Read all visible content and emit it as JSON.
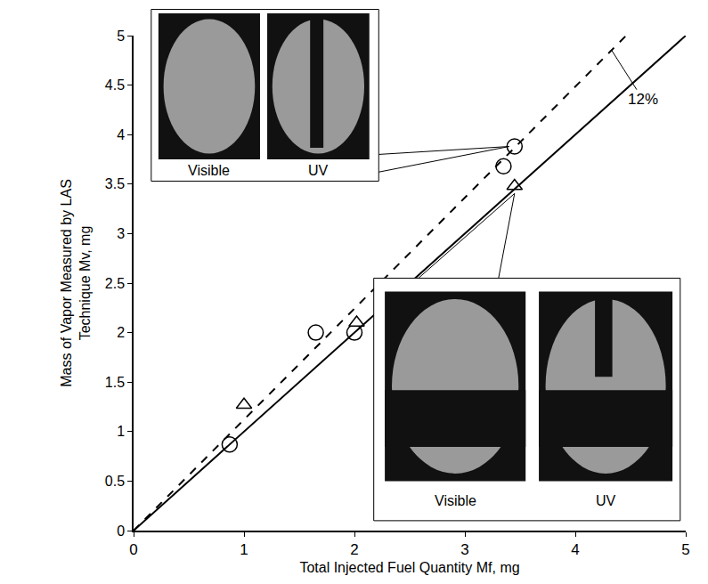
{
  "chart_data": {
    "type": "scatter",
    "xlabel": "Total Injected Fuel Quantity Mf, mg",
    "ylabel": [
      "Mass of Vapor Measured by LAS",
      "Technique Mv, mg"
    ],
    "xlim": [
      0,
      5
    ],
    "ylim": [
      0,
      5
    ],
    "xticks": [
      0,
      1,
      2,
      3,
      4,
      5
    ],
    "yticks": [
      0,
      0.5,
      1,
      1.5,
      2,
      2.5,
      3,
      3.5,
      4,
      4.5,
      5
    ],
    "grid": false,
    "series": [
      {
        "type": "scatter",
        "marker": "circle",
        "color": "#000000",
        "x": [
          0.87,
          1.65,
          2.0,
          3.35,
          3.45
        ],
        "values": [
          0.87,
          2.0,
          2.0,
          3.68,
          3.88
        ]
      },
      {
        "type": "scatter",
        "marker": "triangle",
        "color": "#000000",
        "x": [
          1.0,
          2.02,
          3.45
        ],
        "values": [
          1.27,
          2.1,
          3.48
        ]
      },
      {
        "type": "line",
        "line_style": "solid",
        "color": "#000000",
        "x": [
          0,
          5
        ],
        "values": [
          0,
          5
        ]
      },
      {
        "type": "line",
        "line_style": "dashed",
        "color": "#000000",
        "x": [
          0,
          4.46
        ],
        "values": [
          0,
          5
        ]
      }
    ],
    "annotations": [
      {
        "text": "12%",
        "x": 4.33,
        "y": 4.85
      }
    ],
    "insets": [
      {
        "images": [
          "Visible",
          "UV"
        ]
      },
      {
        "images": [
          "Visible",
          "UV"
        ]
      }
    ]
  }
}
